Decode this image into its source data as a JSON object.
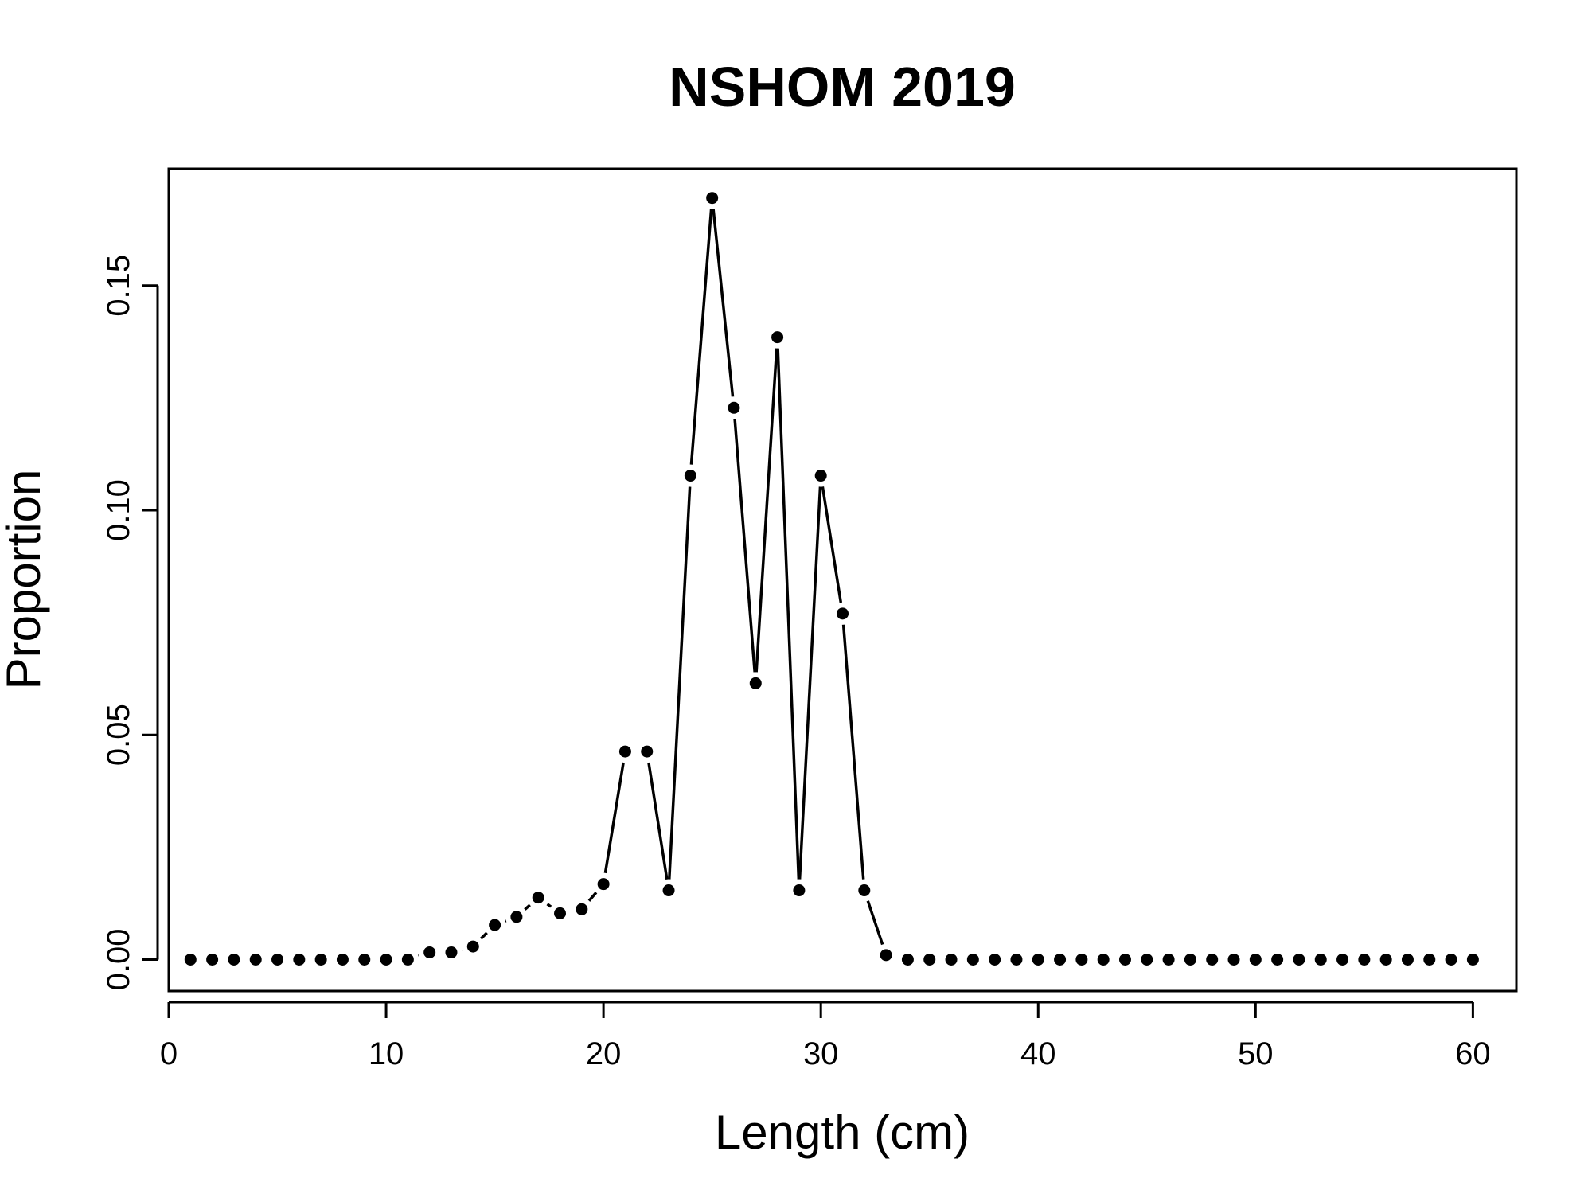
{
  "chart_data": {
    "type": "line",
    "title": "NSHOM 2019",
    "xlabel": "Length (cm)",
    "ylabel": "Proportion",
    "xlim": [
      0,
      62
    ],
    "ylim": [
      -0.007,
      0.176
    ],
    "xticks": [
      0,
      10,
      20,
      30,
      40,
      50,
      60
    ],
    "xtick_labels": [
      "0",
      "10",
      "20",
      "30",
      "40",
      "50",
      "60"
    ],
    "yticks": [
      0,
      0.05,
      0.1,
      0.15
    ],
    "ytick_labels": [
      "0.00",
      "0.05",
      "0.10",
      "0.15"
    ],
    "grid": false,
    "style": "points-and-lines",
    "series": [
      {
        "x": [
          1,
          2,
          3,
          4,
          5,
          6,
          7,
          8,
          9,
          10,
          11,
          12,
          13,
          14,
          15,
          16,
          17,
          18,
          19,
          20,
          21,
          22,
          23,
          24,
          25,
          26,
          27,
          28,
          29,
          30,
          31,
          32,
          33,
          34,
          35,
          36,
          37,
          38,
          39,
          40,
          41,
          42,
          43,
          44,
          45,
          46,
          47,
          48,
          49,
          50,
          51,
          52,
          53,
          54,
          55,
          56,
          57,
          58,
          59,
          60
        ],
        "values": [
          0,
          0,
          0,
          0,
          0,
          0,
          0,
          0,
          0,
          0,
          0,
          0.0016,
          0.0016,
          0.0029,
          0.0077,
          0.0095,
          0.0138,
          0.0103,
          0.0112,
          0.0168,
          0.0463,
          0.0463,
          0.0154,
          0.1077,
          0.1695,
          0.1228,
          0.0615,
          0.1385,
          0.0154,
          0.1077,
          0.077,
          0.0154,
          0.001,
          0,
          0,
          0,
          0,
          0,
          0,
          0,
          0,
          0,
          0,
          0,
          0,
          0,
          0,
          0,
          0,
          0,
          0,
          0,
          0,
          0,
          0,
          0,
          0,
          0,
          0,
          0
        ]
      }
    ]
  }
}
